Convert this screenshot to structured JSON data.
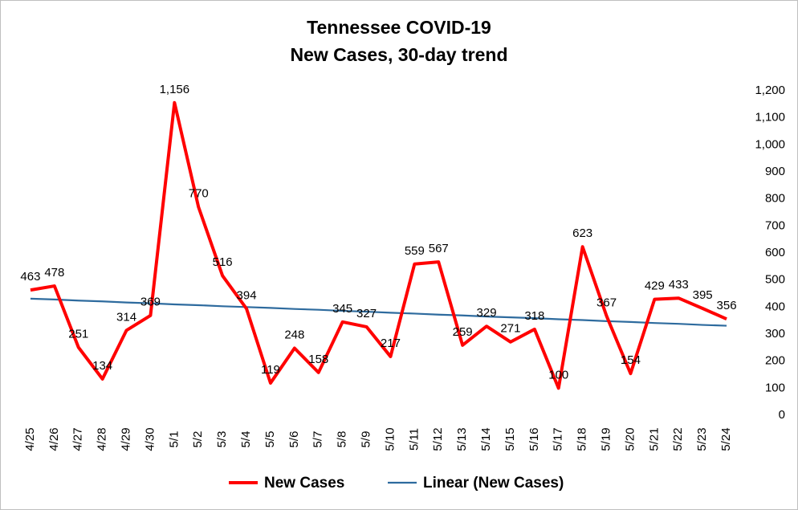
{
  "chart_data": {
    "type": "line",
    "title": "Tennessee COVID-19",
    "subtitle": "New Cases, 30-day trend",
    "categories": [
      "4/25",
      "4/26",
      "4/27",
      "4/28",
      "4/29",
      "4/30",
      "5/1",
      "5/2",
      "5/3",
      "5/4",
      "5/5",
      "5/6",
      "5/7",
      "5/8",
      "5/9",
      "5/10",
      "5/11",
      "5/12",
      "5/13",
      "5/14",
      "5/15",
      "5/16",
      "5/17",
      "5/18",
      "5/19",
      "5/20",
      "5/21",
      "5/22",
      "5/23",
      "5/24"
    ],
    "series": [
      {
        "name": "New Cases",
        "color": "#ff0000",
        "values": [
          463,
          478,
          251,
          134,
          314,
          369,
          1156,
          770,
          516,
          394,
          119,
          248,
          158,
          345,
          327,
          217,
          559,
          567,
          259,
          329,
          271,
          318,
          100,
          623,
          367,
          154,
          429,
          433,
          395,
          356
        ],
        "value_labels": [
          "463",
          "478",
          "251",
          "134",
          "314",
          "369",
          "1,156",
          "770",
          "516",
          "394",
          "119",
          "248",
          "158",
          "345",
          "327",
          "217",
          "559",
          "567",
          "259",
          "329",
          "271",
          "318",
          "100",
          "623",
          "367",
          "154",
          "429",
          "433",
          "395",
          "356"
        ]
      },
      {
        "name": "Linear (New Cases)",
        "color": "#2e6b9e",
        "values": [
          431,
          428,
          424,
          421,
          417,
          414,
          410,
          407,
          403,
          400,
          397,
          393,
          390,
          386,
          383,
          379,
          376,
          372,
          369,
          365,
          362,
          359,
          355,
          352,
          348,
          345,
          341,
          338,
          334,
          331
        ]
      }
    ],
    "ylim": [
      0,
      1200
    ],
    "yticks": [
      0,
      100,
      200,
      300,
      400,
      500,
      600,
      700,
      800,
      900,
      {
        "value": 1000,
        "label": "1,000"
      },
      {
        "value": 1100,
        "label": "1,100"
      },
      {
        "value": 1200,
        "label": "1,200"
      }
    ],
    "grid": false
  }
}
